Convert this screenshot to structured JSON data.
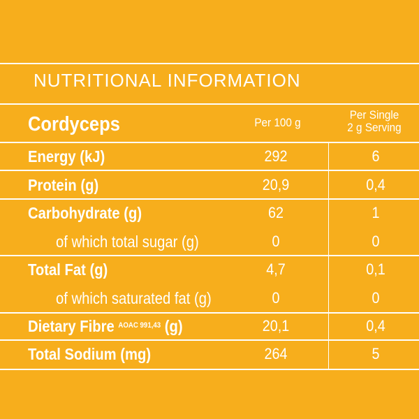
{
  "title": "NUTRITIONAL INFORMATION",
  "header": {
    "product": "Cordyceps",
    "col1": "Per 100 g",
    "col2_line1": "Per Single",
    "col2_line2": "2 g Serving"
  },
  "rows": [
    {
      "label": "Energy (kJ)",
      "per100": "292",
      "perServing": "6"
    },
    {
      "label": "Protein (g)",
      "per100": "20,9",
      "perServing": "0,4"
    },
    {
      "label": "Carbohydrate (g)",
      "per100": "62",
      "perServing": "1"
    },
    {
      "label": "of which total sugar (g)",
      "per100": "0",
      "perServing": "0"
    },
    {
      "label": "Total Fat (g)",
      "per100": "4,7",
      "perServing": "0,1"
    },
    {
      "label": "of which saturated fat (g)",
      "per100": "0",
      "perServing": "0"
    },
    {
      "label_main": "Dietary Fibre ",
      "label_sup": "AOAC 991,43",
      "label_unit": " (g)",
      "per100": "20,1",
      "perServing": "0,4"
    },
    {
      "label": "Total Sodium (mg)",
      "per100": "264",
      "perServing": "5"
    }
  ],
  "colors": {
    "background": "#F7AE1C",
    "text": "#FFFFFF"
  }
}
